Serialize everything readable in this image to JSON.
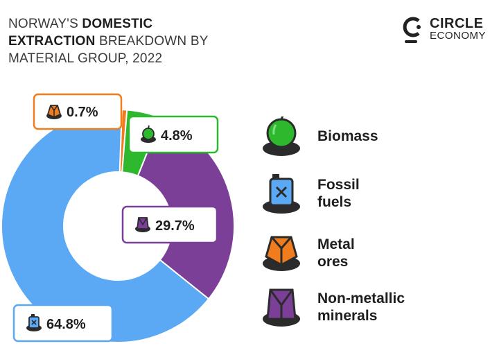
{
  "header": {
    "title_lead": "NORWAY'S ",
    "title_strong_1": "DOMESTIC",
    "title_strong_2": "EXTRACTION",
    "title_rest_1": " BREAKDOWN BY",
    "title_rest_2": "MATERIAL GROUP, 2022"
  },
  "logo": {
    "name": "CIRCLE",
    "sub": "ECONOMY"
  },
  "colors": {
    "biomass": "#2eb82e",
    "fossil": "#5ba8f5",
    "metal": "#f07c1e",
    "nonmetal": "#7b3f98",
    "dark": "#2b2b2b"
  },
  "chart_data": {
    "type": "pie",
    "categories": [
      "Biomass",
      "Fossil fuels",
      "Metal ores",
      "Non-metallic minerals"
    ],
    "values": [
      4.8,
      64.8,
      0.7,
      29.7
    ],
    "labels": [
      "4.8%",
      "64.8%",
      "0.7%",
      "29.7%"
    ],
    "donut": true,
    "legend_position": "right",
    "title": "NORWAY'S DOMESTIC EXTRACTION BREAKDOWN BY MATERIAL GROUP, 2022"
  },
  "legend": [
    {
      "label_1": "Biomass",
      "label_2": ""
    },
    {
      "label_1": "Fossil",
      "label_2": "fuels"
    },
    {
      "label_1": "Metal",
      "label_2": "ores"
    },
    {
      "label_1": "Non-metallic",
      "label_2": "minerals"
    }
  ]
}
